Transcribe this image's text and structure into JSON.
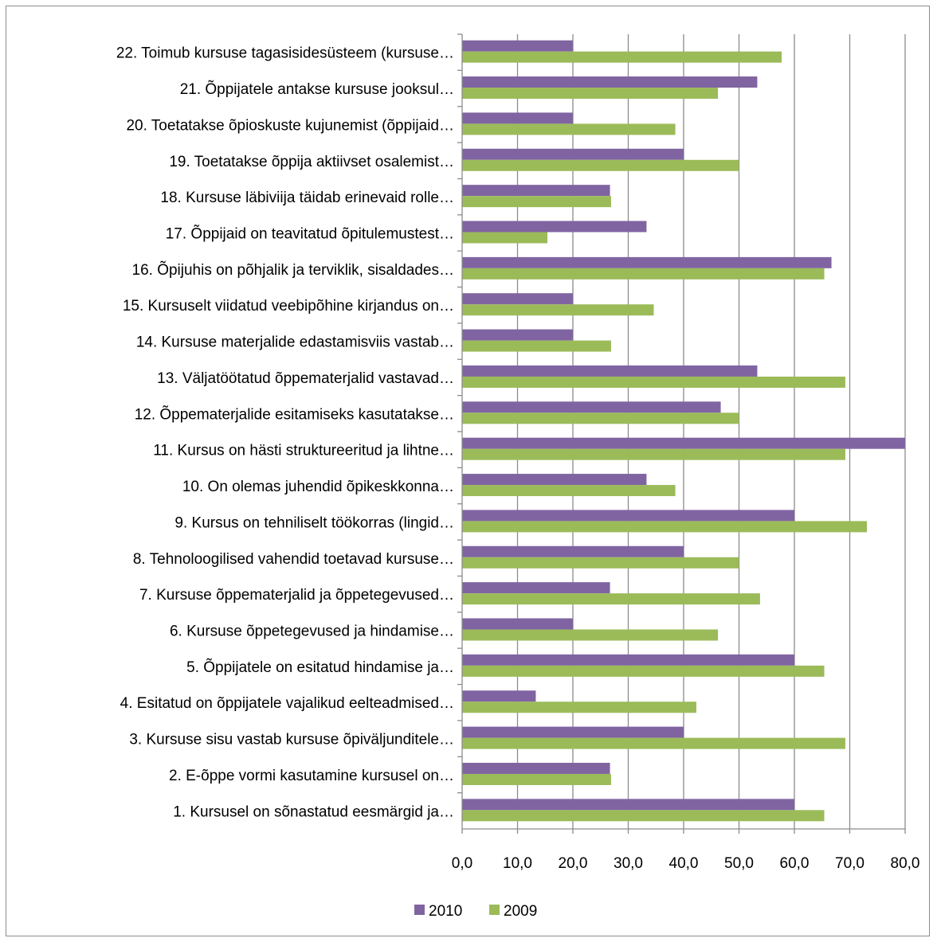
{
  "chart_data": {
    "type": "bar",
    "orientation": "horizontal",
    "title": "",
    "xlabel": "",
    "ylabel": "",
    "xlim": [
      0,
      80
    ],
    "x_ticks": [
      "0,0",
      "10,0",
      "20,0",
      "30,0",
      "40,0",
      "50,0",
      "60,0",
      "70,0",
      "80,0"
    ],
    "grid": true,
    "legend_position": "bottom",
    "categories": [
      "1. Kursusel on sõnastatud eesmärgid ja…",
      "2. E-õppe vormi kasutamine kursusel on…",
      "3. Kursuse sisu vastab kursuse õpiväljunditele…",
      "4. Esitatud on õppijatele vajalikud eelteadmised…",
      "5. Õppijatele on esitatud hindamise ja…",
      "6. Kursuse õppetegevused ja hindamise…",
      "7. Kursuse õppematerjalid ja õppetegevused…",
      "8. Tehnoloogilised vahendid toetavad kursuse…",
      "9. Kursus on tehniliselt töökorras (lingid…",
      "10. On olemas juhendid õpikeskkonna…",
      "11. Kursus on hästi struktureeritud ja lihtne…",
      "12. Õppematerjalide esitamiseks kasutatakse…",
      "13. Väljatöötatud õppematerjalid vastavad…",
      "14. Kursuse materjalide edastamisviis vastab…",
      "15. Kursuselt viidatud veebipõhine kirjandus on…",
      "16. Õpijuhis on põhjalik ja terviklik, sisaldades…",
      "17. Õppijaid on teavitatud õpitulemustest…",
      "18. Kursuse läbiviija täidab erinevaid rolle…",
      "19. Toetatakse õppija aktiivset osalemist…",
      "20. Toetatakse õpioskuste kujunemist (õppijaid…",
      "21. Õppijatele antakse kursuse jooksul…",
      "22. Toimub kursuse tagasisidesüsteem (kursuse…"
    ],
    "series": [
      {
        "name": "2010",
        "color": "#8064a2",
        "values": [
          60.0,
          26.7,
          40.0,
          13.3,
          60.0,
          20.0,
          26.7,
          40.0,
          60.0,
          33.3,
          80.0,
          46.7,
          53.3,
          20.0,
          20.0,
          66.7,
          33.3,
          26.7,
          40.0,
          20.0,
          53.3,
          20.0
        ]
      },
      {
        "name": "2009",
        "color": "#9bbb59",
        "values": [
          65.4,
          26.9,
          69.2,
          42.3,
          65.4,
          46.2,
          53.8,
          50.0,
          73.1,
          38.5,
          69.2,
          50.0,
          69.2,
          26.9,
          34.6,
          65.4,
          15.4,
          26.9,
          50.0,
          38.5,
          46.2,
          57.7
        ]
      }
    ]
  }
}
